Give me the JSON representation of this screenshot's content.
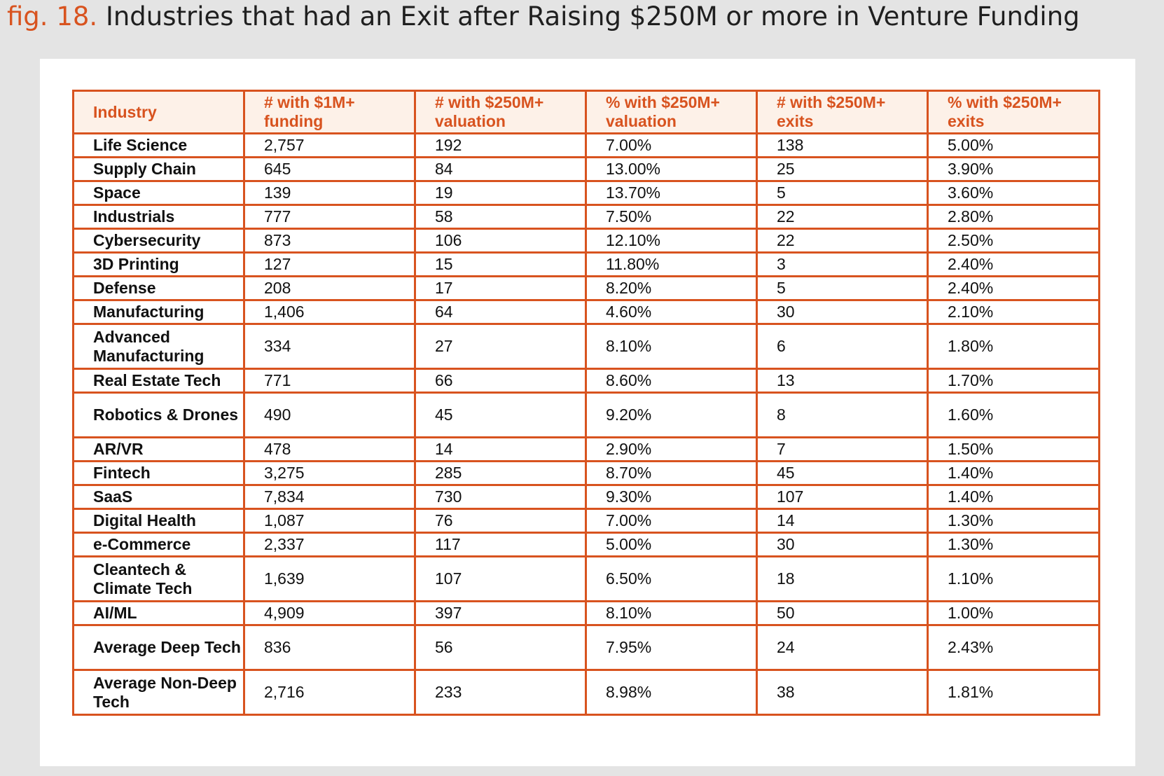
{
  "figure": {
    "label": "fig. 18.",
    "title": "Industries that had an Exit after Raising $250M or more in Venture Funding"
  },
  "table": {
    "headers": [
      "Industry",
      "# with $1M+ funding",
      "# with $250M+ valuation",
      "% with $250M+ valuation",
      "# with $250M+ exits",
      "% with $250M+ exits"
    ],
    "rows": [
      [
        "Life Science",
        "2,757",
        "192",
        "7.00%",
        "138",
        "5.00%"
      ],
      [
        "Supply Chain",
        "645",
        "84",
        "13.00%",
        "25",
        "3.90%"
      ],
      [
        "Space",
        "139",
        "19",
        "13.70%",
        "5",
        "3.60%"
      ],
      [
        "Industrials",
        "777",
        "58",
        "7.50%",
        "22",
        "2.80%"
      ],
      [
        "Cybersecurity",
        "873",
        "106",
        "12.10%",
        "22",
        "2.50%"
      ],
      [
        "3D Printing",
        "127",
        "15",
        "11.80%",
        "3",
        "2.40%"
      ],
      [
        "Defense",
        "208",
        "17",
        "8.20%",
        "5",
        "2.40%"
      ],
      [
        "Manufacturing",
        "1,406",
        "64",
        "4.60%",
        "30",
        "2.10%"
      ],
      [
        "Advanced Manufacturing",
        "334",
        "27",
        "8.10%",
        "6",
        "1.80%"
      ],
      [
        "Real Estate Tech",
        "771",
        "66",
        "8.60%",
        "13",
        "1.70%"
      ],
      [
        "Robotics & Drones",
        "490",
        "45",
        "9.20%",
        "8",
        "1.60%"
      ],
      [
        "AR/VR",
        "478",
        "14",
        "2.90%",
        "7",
        "1.50%"
      ],
      [
        "Fintech",
        "3,275",
        "285",
        "8.70%",
        "45",
        "1.40%"
      ],
      [
        "SaaS",
        "7,834",
        "730",
        "9.30%",
        "107",
        "1.40%"
      ],
      [
        "Digital Health",
        "1,087",
        "76",
        "7.00%",
        "14",
        "1.30%"
      ],
      [
        "e-Commerce",
        "2,337",
        "117",
        "5.00%",
        "30",
        "1.30%"
      ],
      [
        "Cleantech & Climate Tech",
        "1,639",
        "107",
        "6.50%",
        "18",
        "1.10%"
      ],
      [
        "AI/ML",
        "4,909",
        "397",
        "8.10%",
        "50",
        "1.00%"
      ],
      [
        "Average Deep Tech",
        "836",
        "56",
        "7.95%",
        "24",
        "2.43%"
      ],
      [
        "Average Non-Deep Tech",
        "2,716",
        "233",
        "8.98%",
        "38",
        "1.81%"
      ]
    ]
  }
}
